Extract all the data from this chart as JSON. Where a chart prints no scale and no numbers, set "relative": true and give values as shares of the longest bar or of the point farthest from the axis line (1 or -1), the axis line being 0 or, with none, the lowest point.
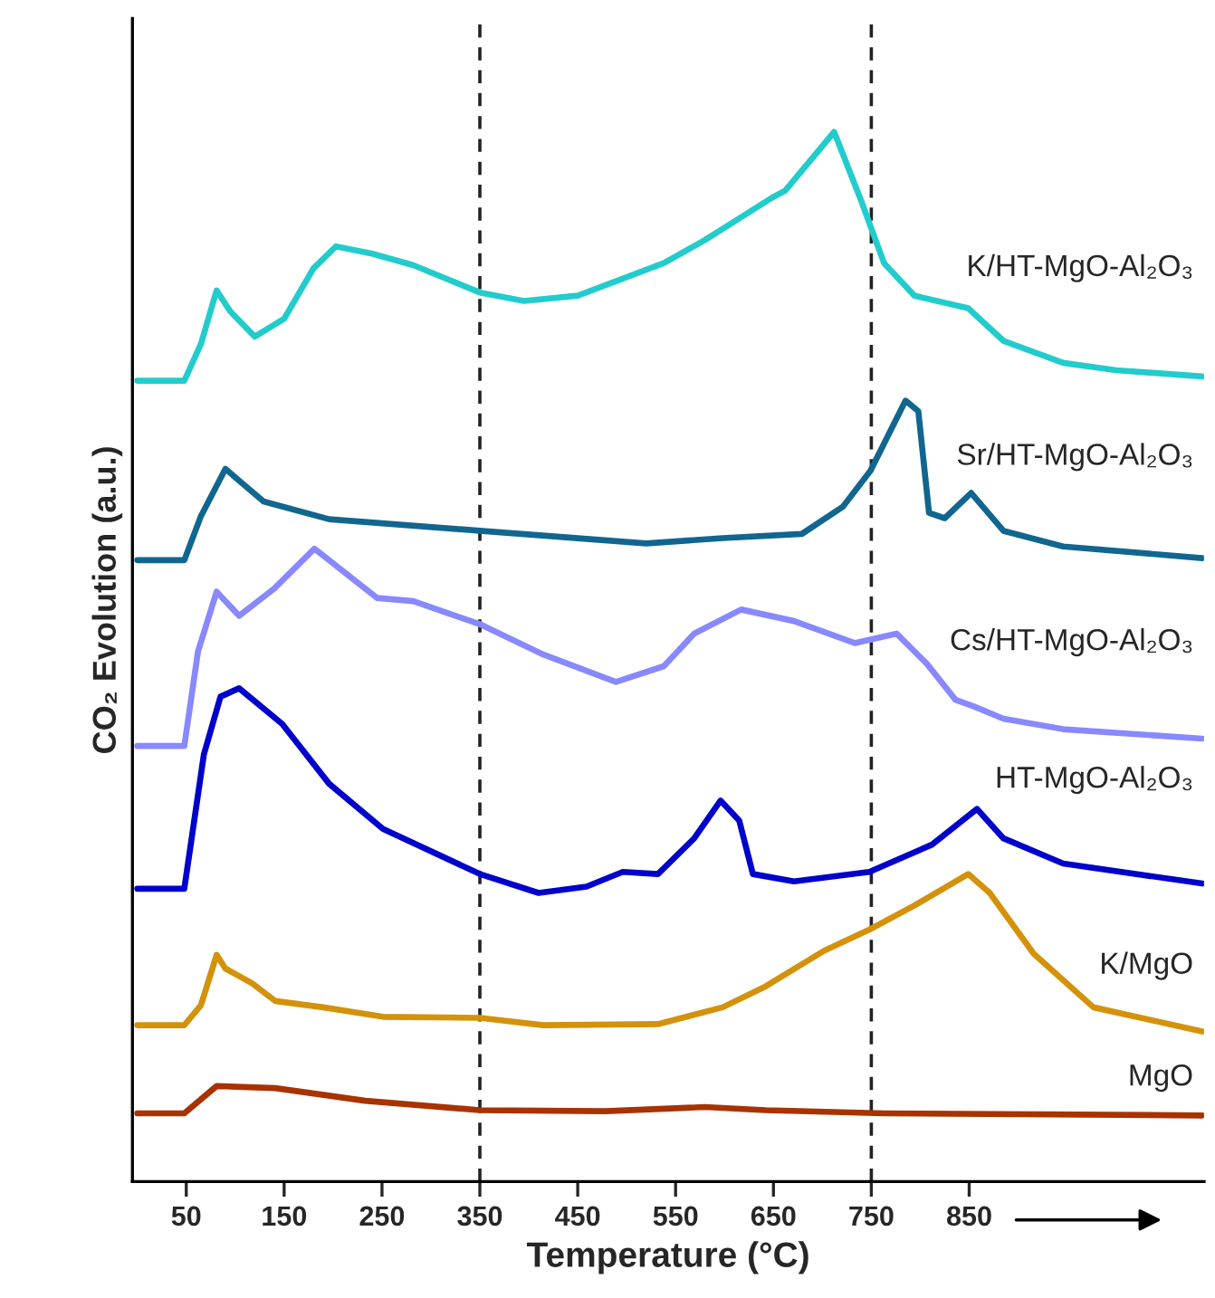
{
  "chart_data": {
    "type": "line",
    "relative": true,
    "xlabel": "Temperature (°C)",
    "ylabel": "CO₂ Evolution (a.u.)",
    "xlim": [
      -5,
      1090
    ],
    "xticks": [
      50,
      150,
      250,
      350,
      450,
      550,
      650,
      750,
      850
    ],
    "ref_lines": [
      {
        "axis": "x",
        "value": 350,
        "color": "#222222",
        "line_style": "dashed"
      },
      {
        "axis": "x",
        "value": 750,
        "color": "#222222",
        "line_style": "dashed"
      }
    ],
    "series": [
      {
        "name": "K/HT-MgO-Al₂O₃",
        "color": "#22cccc",
        "x": [
          0,
          48,
          65,
          81,
          95,
          120,
          150,
          180,
          203,
          240,
          282,
          350,
          395,
          450,
          538,
          580,
          648,
          662,
          712,
          739,
          763,
          794,
          849,
          885,
          946,
          1000,
          1088
        ],
        "values": [
          0.763,
          0.763,
          0.798,
          0.849,
          0.829,
          0.805,
          0.822,
          0.87,
          0.891,
          0.884,
          0.873,
          0.847,
          0.839,
          0.844,
          0.875,
          0.897,
          0.937,
          0.944,
          1,
          0.936,
          0.875,
          0.844,
          0.832,
          0.801,
          0.78,
          0.773,
          0.767
        ]
      },
      {
        "name": "Sr/HT-MgO-Al₂O₃",
        "color": "#11668f",
        "x": [
          0,
          48,
          65,
          90,
          129,
          196,
          350,
          520,
          598,
          679,
          721,
          749,
          785,
          798,
          809,
          825,
          852,
          885,
          946,
          1088
        ],
        "values": [
          0.592,
          0.592,
          0.634,
          0.679,
          0.648,
          0.631,
          0.62,
          0.608,
          0.613,
          0.617,
          0.643,
          0.677,
          0.744,
          0.734,
          0.637,
          0.632,
          0.656,
          0.62,
          0.605,
          0.594
        ]
      },
      {
        "name": "Cs/HT-MgO-Al₂O₃",
        "color": "#8888ff",
        "x": [
          0,
          48,
          62,
          81,
          104,
          140,
          181,
          245,
          282,
          350,
          415,
          489,
          538,
          569,
          617,
          671,
          733,
          776,
          807,
          836,
          854,
          885,
          946,
          1088
        ],
        "values": [
          0.415,
          0.415,
          0.505,
          0.562,
          0.539,
          0.565,
          0.603,
          0.556,
          0.553,
          0.531,
          0.502,
          0.476,
          0.491,
          0.522,
          0.545,
          0.534,
          0.513,
          0.522,
          0.493,
          0.459,
          0.453,
          0.441,
          0.431,
          0.422
        ]
      },
      {
        "name": "HT-MgO-Al₂O₃",
        "color": "#0000cc",
        "x": [
          0,
          48,
          68,
          85,
          104,
          148,
          196,
          251,
          350,
          410,
          459,
          496,
          532,
          569,
          596,
          615,
          629,
          671,
          748,
          812,
          858,
          885,
          946,
          1088
        ],
        "values": [
          0.279,
          0.279,
          0.407,
          0.462,
          0.47,
          0.436,
          0.379,
          0.336,
          0.293,
          0.275,
          0.281,
          0.295,
          0.293,
          0.327,
          0.363,
          0.344,
          0.293,
          0.286,
          0.295,
          0.321,
          0.355,
          0.327,
          0.303,
          0.284
        ]
      },
      {
        "name": "K/MgO",
        "color": "#d4920a",
        "x": [
          0,
          48,
          65,
          81,
          90,
          117,
          141,
          190,
          251,
          350,
          415,
          532,
          598,
          642,
          702,
          748,
          794,
          849,
          871,
          916,
          977,
          1088
        ],
        "values": [
          0.149,
          0.149,
          0.168,
          0.216,
          0.203,
          0.189,
          0.172,
          0.166,
          0.157,
          0.156,
          0.149,
          0.15,
          0.166,
          0.186,
          0.22,
          0.24,
          0.263,
          0.293,
          0.275,
          0.217,
          0.166,
          0.143
        ]
      },
      {
        "name": "MgO",
        "color": "#a83200",
        "x": [
          0,
          48,
          81,
          141,
          233,
          350,
          478,
          580,
          642,
          763,
          1088
        ],
        "values": [
          0.065,
          0.065,
          0.091,
          0.089,
          0.077,
          0.068,
          0.067,
          0.071,
          0.068,
          0.065,
          0.063
        ]
      }
    ]
  }
}
